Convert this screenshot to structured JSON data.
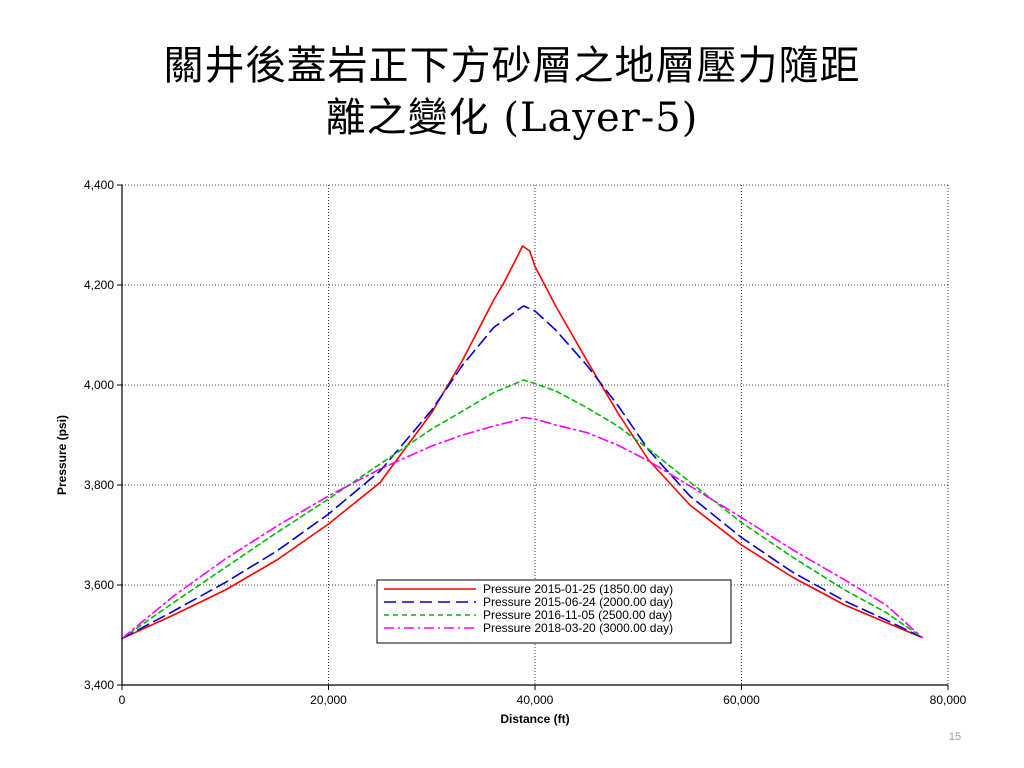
{
  "slide": {
    "title_line1": "關井後蓋岩正下方砂層之地層壓力隨距",
    "title_line2": "離之變化 (Layer-5)",
    "page_number": "15"
  },
  "chart_data": {
    "type": "line",
    "title": "",
    "xlabel": "Distance (ft)",
    "ylabel": "Pressure (psi)",
    "xlim": [
      0,
      80000
    ],
    "ylim": [
      3400,
      4400
    ],
    "x_ticks": [
      0,
      20000,
      40000,
      60000,
      80000
    ],
    "x_tick_labels": [
      "0",
      "20,000",
      "40,000",
      "60,000",
      "80,000"
    ],
    "y_ticks": [
      3400,
      3600,
      3800,
      4000,
      4200,
      4400
    ],
    "y_tick_labels": [
      "3,400",
      "3,600",
      "3,800",
      "4,000",
      "4,200",
      "4,400"
    ],
    "grid": true,
    "legend_position": "bottom-center",
    "series": [
      {
        "name": "Pressure 2015-01-25 (1850.00 day)",
        "color": "#ff0000",
        "dash": "solid",
        "x": [
          0,
          5000,
          10000,
          15000,
          20000,
          25000,
          30000,
          33000,
          36000,
          37000,
          38000,
          38800,
          39500,
          40000,
          42000,
          45000,
          48000,
          51000,
          55000,
          60000,
          65000,
          70000,
          74000,
          77500
        ],
        "y": [
          3493,
          3540,
          3590,
          3650,
          3722,
          3805,
          3945,
          4050,
          4170,
          4205,
          4245,
          4278,
          4268,
          4237,
          4158,
          4050,
          3945,
          3850,
          3760,
          3680,
          3615,
          3560,
          3525,
          3495
        ]
      },
      {
        "name": "Pressure 2015-06-24 (2000.00 day)",
        "color": "#0000cc",
        "dash": "long-dash",
        "x": [
          0,
          5000,
          10000,
          15000,
          20000,
          25000,
          30000,
          33000,
          36000,
          38000,
          38900,
          40000,
          42000,
          45000,
          48000,
          51000,
          55000,
          60000,
          65000,
          70000,
          74000,
          77500
        ],
        "y": [
          3493,
          3548,
          3605,
          3668,
          3742,
          3828,
          3950,
          4040,
          4115,
          4145,
          4158,
          4148,
          4110,
          4040,
          3960,
          3870,
          3778,
          3695,
          3625,
          3568,
          3530,
          3495
        ]
      },
      {
        "name": "Pressure 2016-11-05 (2500.00 day)",
        "color": "#00bb00",
        "dash": "short-dash",
        "x": [
          0,
          5000,
          10000,
          15000,
          20000,
          25000,
          30000,
          33000,
          36000,
          38000,
          38900,
          40000,
          42000,
          45000,
          48000,
          51000,
          55000,
          60000,
          65000,
          70000,
          74000,
          77500
        ],
        "y": [
          3493,
          3565,
          3635,
          3705,
          3772,
          3842,
          3912,
          3948,
          3985,
          4002,
          4010,
          4003,
          3988,
          3955,
          3918,
          3872,
          3806,
          3725,
          3655,
          3590,
          3545,
          3495
        ]
      },
      {
        "name": "Pressure 2018-03-20 (3000.00 day)",
        "color": "#ff00ff",
        "dash": "dash-dot",
        "x": [
          0,
          5000,
          10000,
          15000,
          20000,
          25000,
          30000,
          33000,
          36000,
          38000,
          38900,
          40000,
          42000,
          45000,
          48000,
          51000,
          55000,
          60000,
          65000,
          70000,
          74000,
          77500
        ],
        "y": [
          3493,
          3578,
          3652,
          3718,
          3778,
          3832,
          3878,
          3900,
          3918,
          3928,
          3935,
          3932,
          3920,
          3905,
          3880,
          3848,
          3798,
          3735,
          3670,
          3610,
          3560,
          3495
        ]
      }
    ]
  }
}
